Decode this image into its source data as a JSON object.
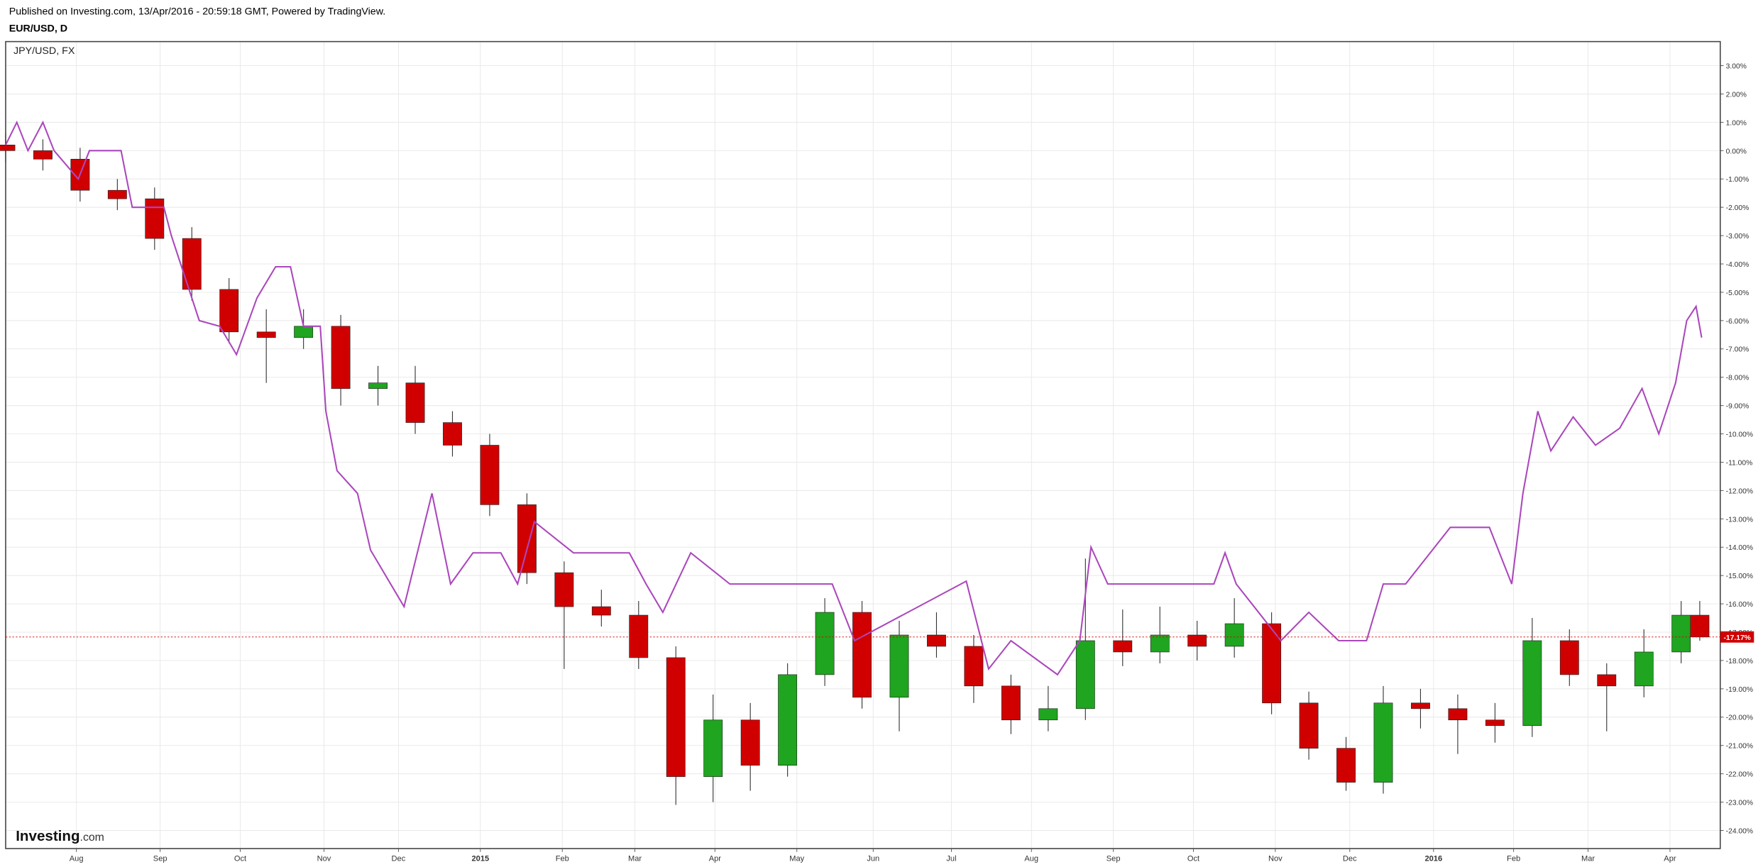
{
  "chart_data": {
    "type": "candlestick",
    "subtitle": "Published on Investing.com, 13/Apr/2016 - 20:59:18 GMT, Powered by TradingView.",
    "title": "EUR/USD, D",
    "up_color": "#1fa51f",
    "down_color": "#d10000",
    "grid": true,
    "x": [
      0,
      2,
      4,
      6,
      8,
      10,
      12,
      14,
      16,
      18,
      20,
      22,
      24,
      26,
      28,
      30,
      32,
      34,
      36,
      38,
      40,
      42,
      44,
      46,
      48,
      50,
      52,
      54,
      56,
      58,
      60,
      62,
      64,
      66,
      68,
      70,
      72,
      74,
      76,
      78,
      80,
      82,
      84,
      86,
      88,
      90,
      91
    ],
    "open": [
      0.2,
      0,
      -0.3,
      -1.4,
      -1.7,
      -3.1,
      -4.9,
      -6.4,
      -6.6,
      -6.2,
      -8.4,
      -8.2,
      -9.6,
      -10.4,
      -12.5,
      -14.9,
      -16.1,
      -16.4,
      -17.9,
      -22.1,
      -20.1,
      -21.7,
      -18.5,
      -16.3,
      -19.3,
      -17.1,
      -17.5,
      -18.9,
      -20.1,
      -19.7,
      -17.3,
      -17.7,
      -17.1,
      -17.5,
      -16.7,
      -19.5,
      -21.1,
      -22.3,
      -19.5,
      -19.7,
      -20.1,
      -20.3,
      -17.3,
      -18.5,
      -18.9,
      -17.7,
      -16.4
    ],
    "high": [
      0.6,
      0.4,
      0.1,
      -1.0,
      -1.3,
      -2.7,
      -4.5,
      -5.6,
      -5.6,
      -5.8,
      -7.6,
      -7.6,
      -9.2,
      -10.0,
      -12.1,
      -14.5,
      -15.5,
      -15.9,
      -17.5,
      -19.2,
      -19.5,
      -18.1,
      -15.8,
      -15.9,
      -16.6,
      -16.3,
      -17.1,
      -18.5,
      -18.9,
      -14.4,
      -16.2,
      -16.1,
      -16.6,
      -15.8,
      -16.3,
      -19.1,
      -20.7,
      -18.9,
      -19.0,
      -19.2,
      -19.5,
      -16.5,
      -16.9,
      -18.1,
      -16.9,
      -15.9,
      -15.9
    ],
    "low": [
      -0.4,
      -0.7,
      -1.8,
      -2.1,
      -3.5,
      -5.3,
      -6.8,
      -8.2,
      -7.0,
      -9.0,
      -9.0,
      -10.0,
      -10.8,
      -12.9,
      -15.3,
      -18.3,
      -16.8,
      -18.3,
      -23.1,
      -23.0,
      -22.6,
      -22.1,
      -18.9,
      -19.7,
      -20.5,
      -17.9,
      -19.5,
      -20.6,
      -20.5,
      -20.1,
      -18.2,
      -18.1,
      -18.0,
      -17.9,
      -19.9,
      -21.5,
      -22.6,
      -22.7,
      -20.4,
      -21.3,
      -20.9,
      -20.7,
      -18.9,
      -20.5,
      -19.3,
      -18.1,
      -17.3
    ],
    "close": [
      0,
      -0.3,
      -1.4,
      -1.7,
      -3.1,
      -4.9,
      -6.4,
      -6.6,
      -6.2,
      -8.4,
      -8.2,
      -9.6,
      -10.4,
      -12.5,
      -14.9,
      -16.1,
      -16.4,
      -17.9,
      -22.1,
      -20.1,
      -21.7,
      -18.5,
      -16.3,
      -19.3,
      -17.1,
      -17.5,
      -18.9,
      -20.1,
      -19.7,
      -17.3,
      -17.7,
      -17.1,
      -17.5,
      -16.7,
      -19.5,
      -21.1,
      -22.3,
      -19.5,
      -19.7,
      -20.1,
      -20.3,
      -17.3,
      -18.5,
      -18.9,
      -17.7,
      -16.4,
      -17.17
    ],
    "last_price": {
      "value": -17.17,
      "label": "-17.17%"
    },
    "overlay": {
      "type": "line",
      "name": "JPY/USD, FX",
      "color": "#ab47bc",
      "x": [
        0,
        0.6,
        1.2,
        2.0,
        2.6,
        3.9,
        4.5,
        6.2,
        6.8,
        8.5,
        8.9,
        9.4,
        10.4,
        11.5,
        12.4,
        13.5,
        14.5,
        15.3,
        16.0,
        16.9,
        17.2,
        17.8,
        18.9,
        19.6,
        21.4,
        22.9,
        23.9,
        25.1,
        26.6,
        27.5,
        28.4,
        30.5,
        33.5,
        34.4,
        35.3,
        36.8,
        38.9,
        44.4,
        45.6,
        51.6,
        52.8,
        54.0,
        56.5,
        57.7,
        58.3,
        59.2,
        64.9,
        65.5,
        66.1,
        68.5,
        70.0,
        71.6,
        73.1,
        74.0,
        75.2,
        77.6,
        79.7,
        80.9,
        81.5,
        82.3,
        83.0,
        84.2,
        85.4,
        86.7,
        87.9,
        88.8,
        89.7,
        90.3,
        90.8,
        91.1
      ],
      "values": [
        0.2,
        1,
        0,
        1,
        0,
        -1,
        0,
        0,
        -2,
        -2,
        -3,
        -4,
        -6,
        -6.2,
        -7.2,
        -5.2,
        -4.1,
        -4.1,
        -6.2,
        -6.2,
        -9.2,
        -11.3,
        -12.1,
        -14.1,
        -16.1,
        -12.1,
        -15.3,
        -14.2,
        -14.2,
        -15.3,
        -13.1,
        -14.2,
        -14.2,
        -15.3,
        -16.3,
        -14.2,
        -15.3,
        -15.3,
        -17.3,
        -15.2,
        -18.3,
        -17.3,
        -18.5,
        -17.3,
        -14.0,
        -15.3,
        -15.3,
        -14.2,
        -15.3,
        -17.3,
        -16.3,
        -17.3,
        -17.3,
        -15.3,
        -15.3,
        -13.3,
        -13.3,
        -15.3,
        -12.1,
        -9.2,
        -10.6,
        -9.4,
        -10.4,
        -9.8,
        -8.4,
        -10.0,
        -8.2,
        -6.0,
        -5.5,
        -6.6
      ]
    },
    "xlim": [
      0,
      92.1
    ],
    "xticks": [
      {
        "value": 3.8,
        "label": "Aug"
      },
      {
        "value": 8.3,
        "label": "Sep"
      },
      {
        "value": 12.6,
        "label": "Oct"
      },
      {
        "value": 17.1,
        "label": "Nov"
      },
      {
        "value": 21.1,
        "label": "Dec"
      },
      {
        "value": 25.5,
        "label": "2015"
      },
      {
        "value": 29.9,
        "label": "Feb"
      },
      {
        "value": 33.8,
        "label": "Mar"
      },
      {
        "value": 38.1,
        "label": "Apr"
      },
      {
        "value": 42.5,
        "label": "May"
      },
      {
        "value": 46.6,
        "label": "Jun"
      },
      {
        "value": 50.8,
        "label": "Jul"
      },
      {
        "value": 55.1,
        "label": "Aug"
      },
      {
        "value": 59.5,
        "label": "Sep"
      },
      {
        "value": 63.8,
        "label": "Oct"
      },
      {
        "value": 68.2,
        "label": "Nov"
      },
      {
        "value": 72.2,
        "label": "Dec"
      },
      {
        "value": 76.7,
        "label": "2016"
      },
      {
        "value": 81.0,
        "label": "Feb"
      },
      {
        "value": 85.0,
        "label": "Mar"
      },
      {
        "value": 89.4,
        "label": "Apr"
      }
    ],
    "ylim": [
      -24.64,
      3.85
    ],
    "yticks": [
      {
        "value": 3,
        "label": "3.00%"
      },
      {
        "value": 2,
        "label": "2.00%"
      },
      {
        "value": 1,
        "label": "1.00%"
      },
      {
        "value": 0,
        "label": "0.00%"
      },
      {
        "value": -1,
        "label": "-1.00%"
      },
      {
        "value": -2,
        "label": "-2.00%"
      },
      {
        "value": -3,
        "label": "-3.00%"
      },
      {
        "value": -4,
        "label": "-4.00%"
      },
      {
        "value": -5,
        "label": "-5.00%"
      },
      {
        "value": -6,
        "label": "-6.00%"
      },
      {
        "value": -7,
        "label": "-7.00%"
      },
      {
        "value": -8,
        "label": "-8.00%"
      },
      {
        "value": -9,
        "label": "-9.00%"
      },
      {
        "value": -10,
        "label": "-10.00%"
      },
      {
        "value": -11,
        "label": "-11.00%"
      },
      {
        "value": -12,
        "label": "-12.00%"
      },
      {
        "value": -13,
        "label": "-13.00%"
      },
      {
        "value": -14,
        "label": "-14.00%"
      },
      {
        "value": -15,
        "label": "-15.00%"
      },
      {
        "value": -16,
        "label": "-16.00%"
      },
      {
        "value": -17,
        "label": "-17.00%"
      },
      {
        "value": -18,
        "label": "-18.00%"
      },
      {
        "value": -19,
        "label": "-19.00%"
      },
      {
        "value": -20,
        "label": "-20.00%"
      },
      {
        "value": -21,
        "label": "-21.00%"
      },
      {
        "value": -22,
        "label": "-22.00%"
      },
      {
        "value": -23,
        "label": "-23.00%"
      },
      {
        "value": -24,
        "label": "-24.00%"
      }
    ],
    "branding": {
      "name": "Investing",
      "suffix": ".com"
    }
  }
}
